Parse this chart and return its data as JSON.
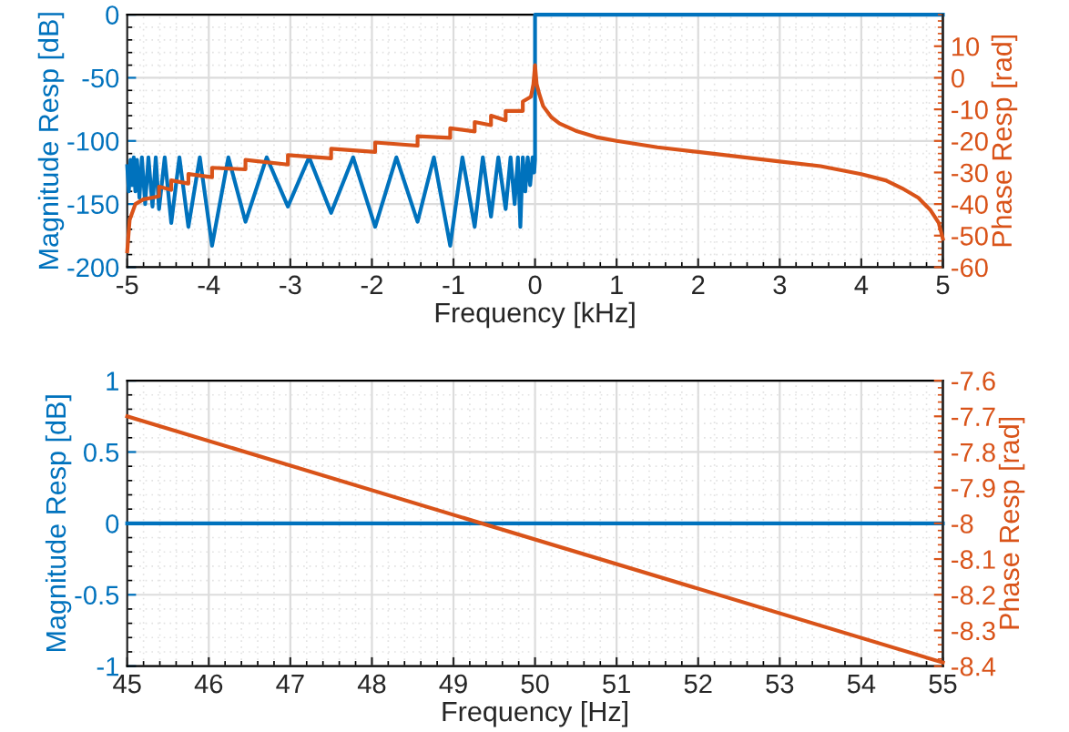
{
  "chart_data": [
    {
      "type": "line",
      "xlabel": "Frequency [kHz]",
      "ylabel": "Magnitude Resp [dB]",
      "y2label": "Phase Resp [rad]",
      "xlim": [
        -5,
        5
      ],
      "xticks": [
        -5,
        -4,
        -3,
        -2,
        -1,
        0,
        1,
        2,
        3,
        4,
        5
      ],
      "ylim": [
        -200,
        0
      ],
      "yticks": [
        -200,
        -150,
        -100,
        -50,
        0
      ],
      "y2lim": [
        -60,
        20
      ],
      "y2ticks": [
        -60,
        -50,
        -40,
        -30,
        -20,
        -10,
        0,
        10
      ],
      "grid": true,
      "legend": false,
      "series": [
        {
          "color": "#0072bd",
          "x": [
            -5,
            -4.98,
            -4.96,
            -4.94,
            -4.92,
            -4.9,
            -4.88,
            -4.85,
            -4.82,
            -4.78,
            -4.74,
            -4.69,
            -4.65,
            -4.61,
            -4.54,
            -4.46,
            -4.36,
            -4.25,
            -4.11,
            -3.96,
            -3.76,
            -3.55,
            -3.29,
            -3.03,
            -2.77,
            -2.5,
            -2.23,
            -1.96,
            -1.7,
            -1.44,
            -1.24,
            -1.04,
            -0.89,
            -0.74,
            -0.64,
            -0.54,
            -0.45,
            -0.36,
            -0.3,
            -0.25,
            -0.21,
            -0.18,
            -0.15,
            -0.12,
            -0.09,
            -0.06,
            -0.03,
            -0.01,
            0,
            0,
            5
          ],
          "values": [
            -120,
            -140,
            -115,
            -135,
            -113,
            -140,
            -115,
            -145,
            -113,
            -150,
            -113,
            -152,
            -113,
            -154,
            -113,
            -165,
            -113,
            -168,
            -113,
            -183,
            -113,
            -164,
            -113,
            -152,
            -113,
            -157,
            -113,
            -168,
            -113,
            -164,
            -113,
            -183,
            -113,
            -168,
            -113,
            -160,
            -113,
            -154,
            -113,
            -150,
            -113,
            -168,
            -113,
            -140,
            -113,
            -135,
            -113,
            -125,
            -115,
            0,
            0
          ]
        },
        {
          "color": "#d95319",
          "axis": "y2",
          "x": [
            -5,
            -4.97,
            -4.9,
            -4.8,
            -4.7,
            -4.61,
            -4.61,
            -4.46,
            -4.46,
            -4.25,
            -4.25,
            -3.96,
            -3.96,
            -3.55,
            -3.55,
            -3.03,
            -3.03,
            -2.5,
            -2.5,
            -1.96,
            -1.96,
            -1.44,
            -1.44,
            -1.04,
            -1.04,
            -0.74,
            -0.74,
            -0.54,
            -0.54,
            -0.36,
            -0.36,
            -0.15,
            -0.15,
            -0.05,
            -0.02,
            0,
            0.02,
            0.05,
            0.1,
            0.2,
            0.3,
            0.5,
            0.75,
            1,
            1.5,
            2,
            2.5,
            3,
            3.5,
            4,
            4.3,
            4.5,
            4.7,
            4.85,
            4.95,
            5
          ],
          "values": [
            -55,
            -45,
            -40,
            -38.5,
            -38,
            -37.5,
            -34.5,
            -35.5,
            -32.5,
            -33.5,
            -30.5,
            -31.5,
            -28.5,
            -29,
            -26,
            -27.5,
            -24.5,
            -25.5,
            -22.5,
            -23.5,
            -20.5,
            -21.5,
            -18.5,
            -19,
            -16,
            -17,
            -14,
            -15,
            -12,
            -13.5,
            -10.5,
            -10.5,
            -7.5,
            -6,
            -2,
            4,
            -2,
            -5,
            -9,
            -12.5,
            -14.5,
            -16.8,
            -18.8,
            -20,
            -22,
            -23.5,
            -25,
            -26.5,
            -28,
            -30.5,
            -32.5,
            -35,
            -38,
            -42,
            -46,
            -51
          ]
        }
      ]
    },
    {
      "type": "line",
      "xlabel": "Frequency [Hz]",
      "ylabel": "Magnitude Resp [dB]",
      "y2label": "Phase Resp [rad]",
      "xlim": [
        45,
        55
      ],
      "xticks": [
        45,
        46,
        47,
        48,
        49,
        50,
        51,
        52,
        53,
        54,
        55
      ],
      "ylim": [
        -1,
        1
      ],
      "yticks": [
        -1,
        -0.5,
        0,
        0.5,
        1
      ],
      "y2lim": [
        -8.4,
        -7.6
      ],
      "y2ticks": [
        -8.4,
        -8.3,
        -8.2,
        -8.1,
        -8,
        -7.9,
        -7.8,
        -7.7,
        -7.6
      ],
      "grid": true,
      "legend": false,
      "series": [
        {
          "color": "#0072bd",
          "x": [
            45,
            55
          ],
          "values": [
            0,
            0
          ]
        },
        {
          "color": "#d95319",
          "axis": "y2",
          "x": [
            45,
            55
          ],
          "values": [
            -7.7,
            -8.39
          ]
        }
      ]
    }
  ]
}
